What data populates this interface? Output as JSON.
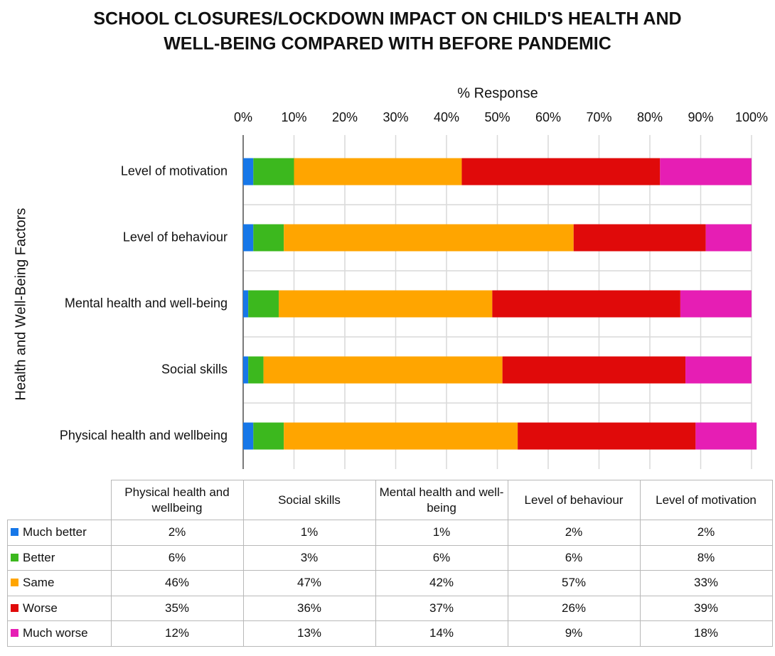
{
  "chart_data": {
    "type": "bar",
    "orientation": "horizontal",
    "stacked": true,
    "title": [
      "SCHOOL CLOSURES/LOCKDOWN IMPACT ON CHILD'S HEALTH AND",
      "WELL-BEING COMPARED WITH BEFORE PANDEMIC"
    ],
    "x_label": "% Response",
    "y_label": "Health and Well-Being Factors",
    "categories": [
      "Physical health and wellbeing",
      "Social skills",
      "Mental health and well-being",
      "Level of behaviour",
      "Level of motivation"
    ],
    "series": [
      {
        "name": "Much better",
        "color": "#1677e8",
        "values": [
          2,
          1,
          1,
          2,
          2
        ],
        "value_labels": [
          "2%",
          "1%",
          "1%",
          "2%",
          "2%"
        ]
      },
      {
        "name": "Better",
        "color": "#3cb81e",
        "values": [
          6,
          3,
          6,
          6,
          8
        ],
        "value_labels": [
          "6%",
          "3%",
          "6%",
          "6%",
          "8%"
        ]
      },
      {
        "name": "Same",
        "color": "#ffa500",
        "values": [
          46,
          47,
          42,
          57,
          33
        ],
        "value_labels": [
          "46%",
          "47%",
          "42%",
          "57%",
          "33%"
        ]
      },
      {
        "name": "Worse",
        "color": "#e00a0a",
        "values": [
          35,
          36,
          37,
          26,
          39
        ],
        "value_labels": [
          "35%",
          "36%",
          "37%",
          "26%",
          "39%"
        ]
      },
      {
        "name": "Much worse",
        "color": "#e61eb4",
        "values": [
          12,
          13,
          14,
          9,
          18
        ],
        "value_labels": [
          "12%",
          "13%",
          "14%",
          "9%",
          "18%"
        ]
      }
    ],
    "xlim": [
      0,
      100
    ],
    "xticks": [
      {
        "value": 0,
        "label": "0%"
      },
      {
        "value": 10,
        "label": "10%"
      },
      {
        "value": 20,
        "label": "20%"
      },
      {
        "value": 30,
        "label": "30%"
      },
      {
        "value": 40,
        "label": "40%"
      },
      {
        "value": 50,
        "label": "50%"
      },
      {
        "value": 60,
        "label": "60%"
      },
      {
        "value": 70,
        "label": "70%"
      },
      {
        "value": 80,
        "label": "80%"
      },
      {
        "value": 90,
        "label": "90%"
      },
      {
        "value": 100,
        "label": "100%"
      }
    ],
    "grid": true
  }
}
